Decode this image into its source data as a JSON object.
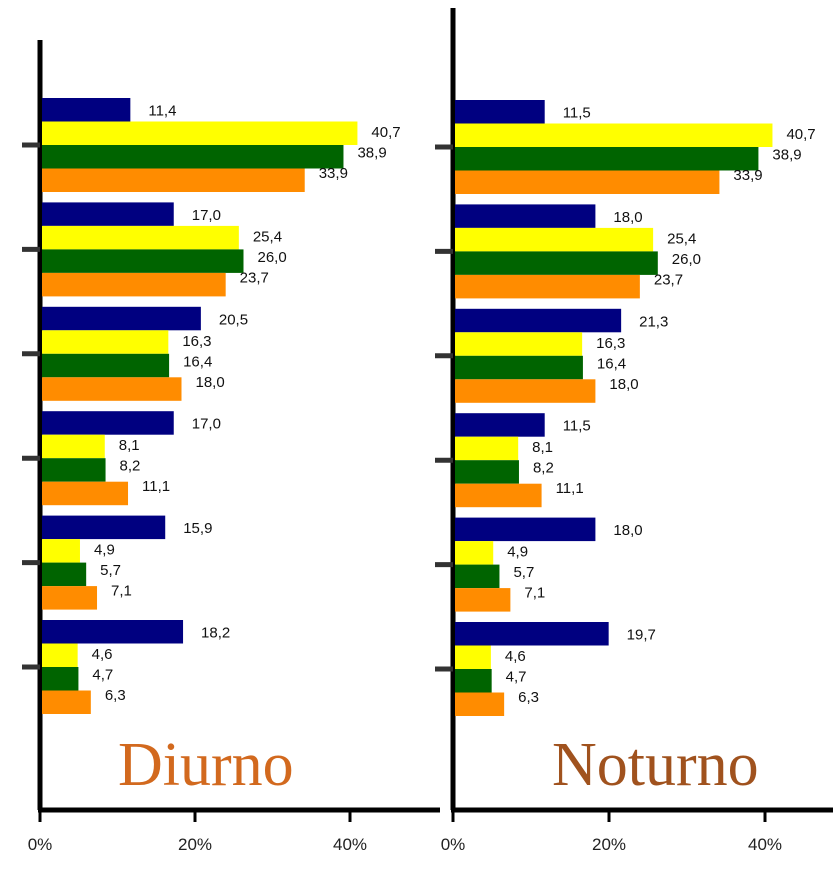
{
  "chart_data": [
    {
      "type": "bar",
      "orientation": "horizontal",
      "title": "Diurno",
      "title_color": "#d2691e",
      "xlim": [
        0,
        50
      ],
      "x_ticks": [
        "0%",
        "20%",
        "40%"
      ],
      "groups": 6,
      "series": [
        {
          "color": "#000080",
          "values": [
            11.4,
            17.0,
            20.5,
            17.0,
            15.9,
            18.2
          ],
          "labels": [
            "11,4",
            "17,0",
            "20,5",
            "17,0",
            "15,9",
            "18,2"
          ]
        },
        {
          "color": "#ffff00",
          "values": [
            40.7,
            25.4,
            16.3,
            8.1,
            4.9,
            4.6
          ],
          "labels": [
            "40,7",
            "25,4",
            "16,3",
            "8,1",
            "4,9",
            "4,6"
          ]
        },
        {
          "color": "#006400",
          "values": [
            38.9,
            26.0,
            16.4,
            8.2,
            5.7,
            4.7
          ],
          "labels": [
            "38,9",
            "26,0",
            "16,4",
            "8,2",
            "5,7",
            "4,7"
          ]
        },
        {
          "color": "#ff8c00",
          "values": [
            33.9,
            23.7,
            18.0,
            11.1,
            7.1,
            6.3
          ],
          "labels": [
            "33,9",
            "23,7",
            "18,0",
            "11,1",
            "7,1",
            "6,3"
          ]
        }
      ]
    },
    {
      "type": "bar",
      "orientation": "horizontal",
      "title": "Noturno",
      "title_color": "#a0521e",
      "xlim": [
        0,
        50
      ],
      "x_ticks": [
        "0%",
        "20%",
        "40%"
      ],
      "groups": 6,
      "series": [
        {
          "color": "#000080",
          "values": [
            11.5,
            18.0,
            21.3,
            11.5,
            18.0,
            19.7
          ],
          "labels": [
            "11,5",
            "18,0",
            "21,3",
            "11,5",
            "18,0",
            "19,7"
          ]
        },
        {
          "color": "#ffff00",
          "values": [
            40.7,
            25.4,
            16.3,
            8.1,
            4.9,
            4.6
          ],
          "labels": [
            "40,7",
            "25,4",
            "16,3",
            "8,1",
            "4,9",
            "4,6"
          ]
        },
        {
          "color": "#006400",
          "values": [
            38.9,
            26.0,
            16.4,
            8.2,
            5.7,
            4.7
          ],
          "labels": [
            "38,9",
            "26,0",
            "16,4",
            "8,2",
            "5,7",
            "4,7"
          ]
        },
        {
          "color": "#ff8c00",
          "values": [
            33.9,
            23.7,
            18.0,
            11.1,
            7.1,
            6.3
          ],
          "labels": [
            "33,9",
            "23,7",
            "18,0",
            "11,1",
            "7,1",
            "6,3"
          ]
        }
      ]
    }
  ]
}
